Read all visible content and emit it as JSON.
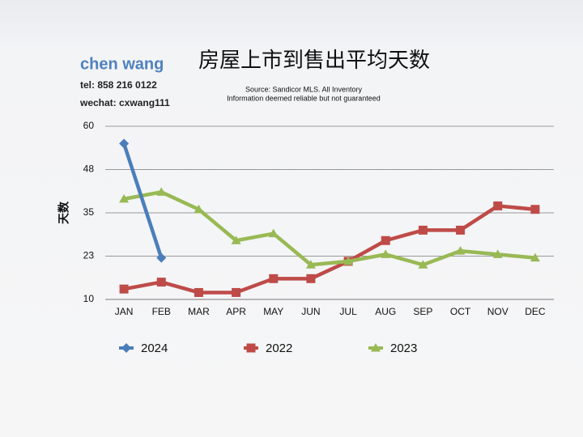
{
  "author": {
    "name": "chen wang",
    "tel": "tel: 858 216 0122",
    "wechat": "wechat: cxwang111"
  },
  "chart_data": {
    "type": "line",
    "title": "房屋上市到售出平均天数",
    "source": "Source: Sandicor MLS. All Inventory",
    "disclaimer": "Information deemed reliable but not guaranteed",
    "y_label": "天数",
    "categories": [
      "JAN",
      "FEB",
      "MAR",
      "APR",
      "MAY",
      "JUN",
      "JUL",
      "AUG",
      "SEP",
      "OCT",
      "NOV",
      "DEC"
    ],
    "series": [
      {
        "name": "2024",
        "color": "#4a7ebb",
        "marker": "diamond",
        "values": [
          55,
          22,
          null,
          null,
          null,
          null,
          null,
          null,
          null,
          null,
          null,
          null
        ]
      },
      {
        "name": "2022",
        "color": "#be4b48",
        "marker": "square",
        "values": [
          13,
          15,
          12,
          12,
          16,
          16,
          21,
          27,
          30,
          30,
          37,
          36
        ]
      },
      {
        "name": "2023",
        "color": "#98b954",
        "marker": "triangle",
        "values": [
          39,
          41,
          36,
          27,
          29,
          20,
          21,
          23,
          20,
          24,
          23,
          22
        ]
      }
    ],
    "ylim": [
      10,
      60
    ],
    "yticks": [
      10,
      {
        "value": 22.5,
        "label": "23"
      },
      35,
      {
        "value": 47.5,
        "label": "48"
      },
      60
    ],
    "grid": true,
    "legend": "bottom"
  }
}
